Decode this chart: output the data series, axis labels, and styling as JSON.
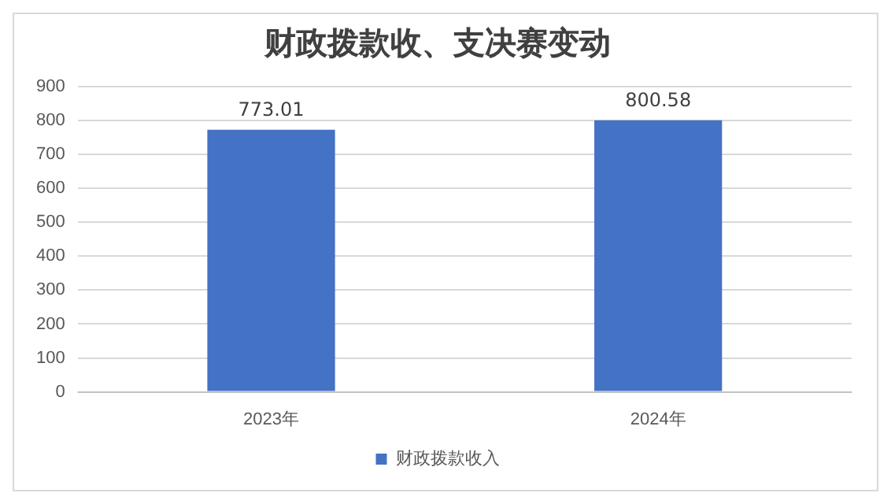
{
  "chart_data": {
    "type": "bar",
    "title": "财政拨款收、支决赛变动",
    "categories": [
      "2023年",
      "2024年"
    ],
    "series": [
      {
        "name": "财政拨款收入",
        "color": "#4472c4",
        "values": [
          773.01,
          800.58
        ]
      }
    ],
    "ylim": [
      0,
      900
    ],
    "yticks": [
      0,
      100,
      200,
      300,
      400,
      500,
      600,
      700,
      800,
      900
    ],
    "grid": "y",
    "legend": "bottom",
    "data_labels": true
  }
}
